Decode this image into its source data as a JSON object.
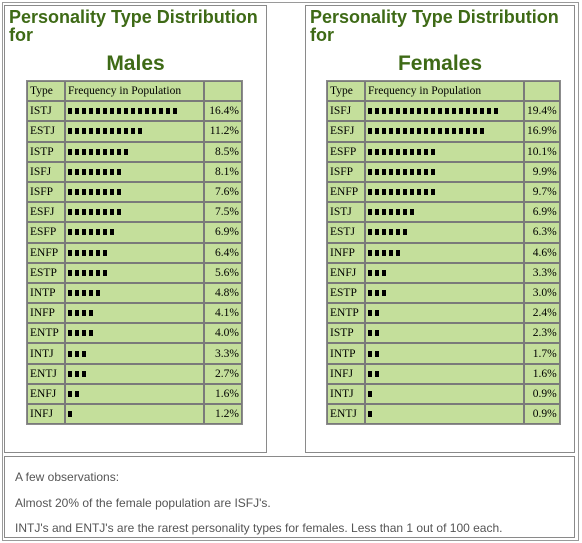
{
  "male": {
    "title_line1": "Personality Type Distribution",
    "title_line2": "for",
    "subtitle": "Males",
    "col_type": "Type",
    "col_freq": "Frequency in Population",
    "rows": [
      {
        "type": "ISTJ",
        "bars": 16,
        "pct": "16.4%"
      },
      {
        "type": "ESTJ",
        "bars": 11,
        "pct": "11.2%"
      },
      {
        "type": "ISTP",
        "bars": 9,
        "pct": "8.5%"
      },
      {
        "type": "ISFJ",
        "bars": 8,
        "pct": "8.1%"
      },
      {
        "type": "ISFP",
        "bars": 8,
        "pct": "7.6%"
      },
      {
        "type": "ESFJ",
        "bars": 8,
        "pct": "7.5%"
      },
      {
        "type": "ESFP",
        "bars": 7,
        "pct": "6.9%"
      },
      {
        "type": "ENFP",
        "bars": 6,
        "pct": "6.4%"
      },
      {
        "type": "ESTP",
        "bars": 6,
        "pct": "5.6%"
      },
      {
        "type": "INTP",
        "bars": 5,
        "pct": "4.8%"
      },
      {
        "type": "INFP",
        "bars": 4,
        "pct": "4.1%"
      },
      {
        "type": "ENTP",
        "bars": 4,
        "pct": "4.0%"
      },
      {
        "type": "INTJ",
        "bars": 3,
        "pct": "3.3%"
      },
      {
        "type": "ENTJ",
        "bars": 3,
        "pct": "2.7%"
      },
      {
        "type": "ENFJ",
        "bars": 2,
        "pct": "1.6%"
      },
      {
        "type": "INFJ",
        "bars": 1,
        "pct": "1.2%"
      }
    ]
  },
  "female": {
    "title_line1": "Personality Type Distribution",
    "title_line2": "for",
    "subtitle": "Females",
    "col_type": "Type",
    "col_freq": "Frequency in Population",
    "rows": [
      {
        "type": "ISFJ",
        "bars": 19,
        "pct": "19.4%"
      },
      {
        "type": "ESFJ",
        "bars": 17,
        "pct": "16.9%"
      },
      {
        "type": "ESFP",
        "bars": 10,
        "pct": "10.1%"
      },
      {
        "type": "ISFP",
        "bars": 10,
        "pct": "9.9%"
      },
      {
        "type": "ENFP",
        "bars": 10,
        "pct": "9.7%"
      },
      {
        "type": "ISTJ",
        "bars": 7,
        "pct": "6.9%"
      },
      {
        "type": "ESTJ",
        "bars": 6,
        "pct": "6.3%"
      },
      {
        "type": "INFP",
        "bars": 5,
        "pct": "4.6%"
      },
      {
        "type": "ENFJ",
        "bars": 3,
        "pct": "3.3%"
      },
      {
        "type": "ESTP",
        "bars": 3,
        "pct": "3.0%"
      },
      {
        "type": "ENTP",
        "bars": 2,
        "pct": "2.4%"
      },
      {
        "type": "ISTP",
        "bars": 2,
        "pct": "2.3%"
      },
      {
        "type": "INTP",
        "bars": 2,
        "pct": "1.7%"
      },
      {
        "type": "INFJ",
        "bars": 2,
        "pct": "1.6%"
      },
      {
        "type": "INTJ",
        "bars": 1,
        "pct": "0.9%"
      },
      {
        "type": "ENTJ",
        "bars": 1,
        "pct": "0.9%"
      }
    ]
  },
  "notes": {
    "intro": "A few observations:",
    "line1": "Almost 20% of the female population are ISFJ's.",
    "line2": "INTJ's and ENTJ's are the rarest personality types for females. Less than 1 out of 100 each."
  }
}
